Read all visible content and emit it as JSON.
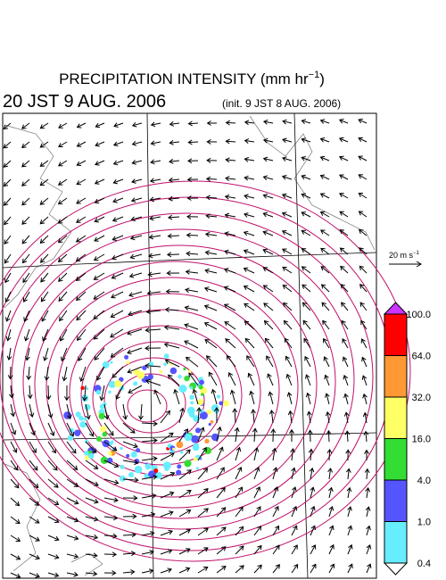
{
  "header": {
    "title": {
      "text": "PRECIPITATION INTENSITY (mm hr",
      "superscript": "−1",
      "close": ")"
    },
    "valid_time": "20 JST 9 AUG. 2006",
    "init_time": "(init. 9 JST 8 AUG. 2006)"
  },
  "wind_scale": {
    "text": "20 m s",
    "superscript": "−1"
  },
  "legend": {
    "levels": [
      "100.0",
      "64.0",
      "32.0",
      "16.0",
      "4.0",
      "1.0",
      "0.4"
    ],
    "colors": [
      "#ff0000",
      "#ff9933",
      "#ffff66",
      "#33dd33",
      "#5555ff",
      "#66eeff"
    ],
    "over_color": "#cc33ff",
    "under_color": "#ffffff"
  }
}
